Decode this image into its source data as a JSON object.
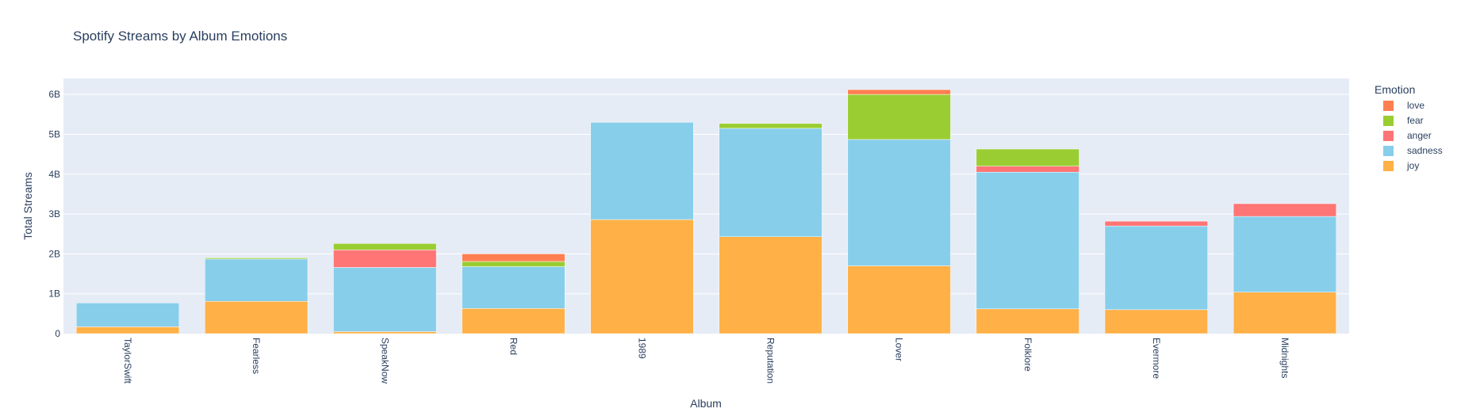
{
  "chart_data": {
    "type": "bar",
    "barmode": "stack",
    "title": "Spotify Streams by Album Emotions",
    "xlabel": "Album",
    "ylabel": "Total Streams",
    "ylim": [
      0,
      6.4
    ],
    "y_unit": "billions",
    "y_ticks": [
      0,
      1,
      2,
      3,
      4,
      5,
      6
    ],
    "y_tick_labels": [
      "0",
      "1B",
      "2B",
      "3B",
      "4B",
      "5B",
      "6B"
    ],
    "grid": true,
    "legend_title": "Emotion",
    "legend_position": "right",
    "categories": [
      "TaylorSwift",
      "Fearless",
      "SpeakNow",
      "Red",
      "1989",
      "Reputation",
      "Lover",
      "Folklore",
      "Evermore",
      "Midnights"
    ],
    "series": [
      {
        "name": "joy",
        "color": "#ffb046",
        "values": [
          0.17,
          0.81,
          0.05,
          0.63,
          2.86,
          2.43,
          1.7,
          0.62,
          0.6,
          1.04
        ]
      },
      {
        "name": "sadness",
        "color": "#87ceeb",
        "values": [
          0.6,
          1.06,
          1.61,
          1.05,
          2.44,
          2.72,
          3.17,
          3.43,
          2.1,
          1.9
        ]
      },
      {
        "name": "anger",
        "color": "#ff7575",
        "values": [
          0,
          0,
          0.44,
          0,
          0,
          0,
          0,
          0.15,
          0.12,
          0.32
        ]
      },
      {
        "name": "fear",
        "color": "#9acd32",
        "values": [
          0,
          0.03,
          0.16,
          0.13,
          0,
          0.12,
          1.13,
          0.43,
          0,
          0
        ]
      },
      {
        "name": "love",
        "color": "#ff7f50",
        "values": [
          0,
          0,
          0,
          0.19,
          0,
          0,
          0.12,
          0,
          0,
          0
        ]
      }
    ]
  }
}
